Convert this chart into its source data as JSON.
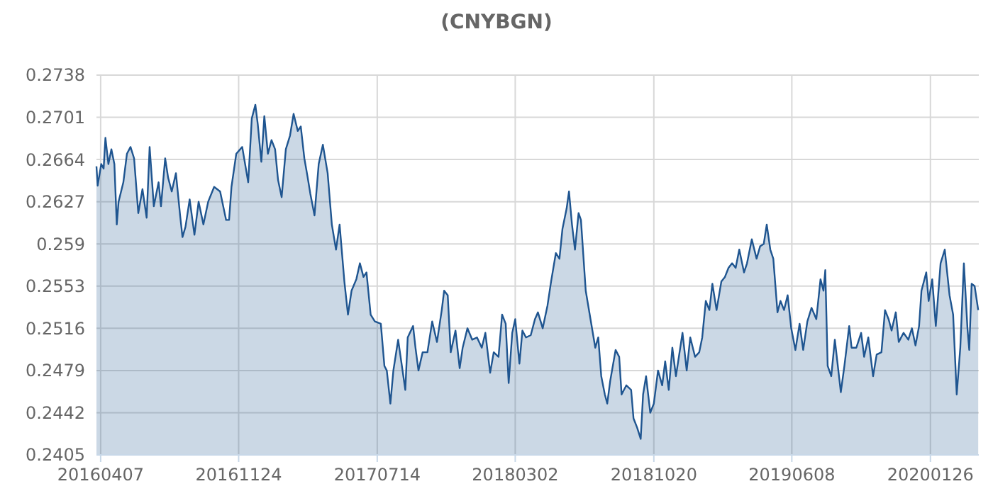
{
  "chart_data": {
    "type": "area",
    "title": "(CNYBGN)",
    "xlim": [
      "2016-03-31",
      "2020-04-16"
    ],
    "xticks": [
      {
        "value": "2016-04-07",
        "label": "20160407"
      },
      {
        "value": "2016-11-24",
        "label": "20161124"
      },
      {
        "value": "2017-07-14",
        "label": "20170714"
      },
      {
        "value": "2018-03-02",
        "label": "20180302"
      },
      {
        "value": "2018-10-20",
        "label": "20181020"
      },
      {
        "value": "2019-06-08",
        "label": "20190608"
      },
      {
        "value": "2020-01-26",
        "label": "20200126"
      }
    ],
    "ylim": [
      0.2405,
      0.2738
    ],
    "yticks": [
      0.2405,
      0.2442,
      0.2479,
      0.2516,
      0.2553,
      0.259,
      0.2627,
      0.2664,
      0.2701,
      0.2738
    ],
    "grid": true,
    "series": [
      {
        "color": "#1f5590",
        "x": [
          "2016-03-31",
          "2016-04-02",
          "2016-04-08",
          "2016-04-12",
          "2016-04-15",
          "2016-04-20",
          "2016-04-25",
          "2016-04-30",
          "2016-05-04",
          "2016-05-07",
          "2016-05-15",
          "2016-05-21",
          "2016-05-27",
          "2016-06-02",
          "2016-06-09",
          "2016-06-16",
          "2016-06-23",
          "2016-06-28",
          "2016-07-05",
          "2016-07-13",
          "2016-07-17",
          "2016-07-24",
          "2016-07-29",
          "2016-08-04",
          "2016-08-11",
          "2016-08-18",
          "2016-08-22",
          "2016-08-27",
          "2016-09-03",
          "2016-09-11",
          "2016-09-18",
          "2016-09-26",
          "2016-10-04",
          "2016-10-14",
          "2016-10-24",
          "2016-11-03",
          "2016-11-08",
          "2016-11-12",
          "2016-11-20",
          "2016-11-30",
          "2016-12-10",
          "2016-12-16",
          "2016-12-22",
          "2016-12-26",
          "2017-01-01",
          "2017-01-06",
          "2017-01-12",
          "2017-01-18",
          "2017-01-24",
          "2017-01-29",
          "2017-02-04",
          "2017-02-11",
          "2017-02-18",
          "2017-02-24",
          "2017-03-03",
          "2017-03-08",
          "2017-03-14",
          "2017-03-19",
          "2017-03-24",
          "2017-03-31",
          "2017-04-07",
          "2017-04-14",
          "2017-04-22",
          "2017-04-29",
          "2017-05-06",
          "2017-05-12",
          "2017-05-20",
          "2017-05-26",
          "2017-06-01",
          "2017-06-09",
          "2017-06-15",
          "2017-06-21",
          "2017-06-26",
          "2017-07-03",
          "2017-07-10",
          "2017-07-20",
          "2017-07-26",
          "2017-07-30",
          "2017-08-05",
          "2017-08-10",
          "2017-08-18",
          "2017-08-30",
          "2017-09-03",
          "2017-09-12",
          "2017-09-16",
          "2017-09-21",
          "2017-09-28",
          "2017-10-06",
          "2017-10-14",
          "2017-10-22",
          "2017-10-30",
          "2017-11-03",
          "2017-11-09",
          "2017-11-14",
          "2017-11-22",
          "2017-11-29",
          "2017-12-04",
          "2017-12-12",
          "2017-12-20",
          "2017-12-28",
          "2018-01-05",
          "2018-01-11",
          "2018-01-19",
          "2018-01-25",
          "2018-02-02",
          "2018-02-08",
          "2018-02-14",
          "2018-02-19",
          "2018-02-25",
          "2018-03-02",
          "2018-03-09",
          "2018-03-14",
          "2018-03-20",
          "2018-03-28",
          "2018-04-04",
          "2018-04-09",
          "2018-04-17",
          "2018-04-25",
          "2018-05-01",
          "2018-05-09",
          "2018-05-15",
          "2018-05-20",
          "2018-05-27",
          "2018-05-31",
          "2018-06-05",
          "2018-06-10",
          "2018-06-16",
          "2018-06-20",
          "2018-06-28",
          "2018-07-06",
          "2018-07-14",
          "2018-07-19",
          "2018-07-24",
          "2018-07-30",
          "2018-08-03",
          "2018-08-08",
          "2018-08-17",
          "2018-08-23",
          "2018-08-27",
          "2018-09-04",
          "2018-09-12",
          "2018-09-16",
          "2018-09-22",
          "2018-09-28",
          "2018-10-02",
          "2018-10-07",
          "2018-10-14",
          "2018-10-20",
          "2018-10-27",
          "2018-11-03",
          "2018-11-08",
          "2018-11-14",
          "2018-11-20",
          "2018-11-26",
          "2018-12-07",
          "2018-12-14",
          "2018-12-20",
          "2018-12-28",
          "2019-01-04",
          "2019-01-09",
          "2019-01-15",
          "2019-01-21",
          "2019-01-26",
          "2019-02-02",
          "2019-02-10",
          "2019-02-16",
          "2019-02-22",
          "2019-02-28",
          "2019-03-06",
          "2019-03-12",
          "2019-03-20",
          "2019-03-25",
          "2019-04-02",
          "2019-04-10",
          "2019-04-16",
          "2019-04-22",
          "2019-04-27",
          "2019-05-03",
          "2019-05-08",
          "2019-05-15",
          "2019-05-20",
          "2019-05-26",
          "2019-06-01",
          "2019-06-07",
          "2019-06-14",
          "2019-06-21",
          "2019-06-27",
          "2019-07-04",
          "2019-07-11",
          "2019-07-19",
          "2019-07-26",
          "2019-07-31",
          "2019-08-03",
          "2019-08-07",
          "2019-08-13",
          "2019-08-19",
          "2019-08-29",
          "2019-09-04",
          "2019-09-12",
          "2019-09-16",
          "2019-09-24",
          "2019-10-02",
          "2019-10-07",
          "2019-10-14",
          "2019-10-22",
          "2019-10-28",
          "2019-11-05",
          "2019-11-11",
          "2019-11-17",
          "2019-11-22",
          "2019-11-29",
          "2019-12-04",
          "2019-12-12",
          "2019-12-20",
          "2019-12-26",
          "2020-01-01",
          "2020-01-07",
          "2020-01-11",
          "2020-01-19",
          "2020-01-23",
          "2020-01-29",
          "2020-02-04",
          "2020-02-12",
          "2020-02-19",
          "2020-02-27",
          "2020-03-04",
          "2020-03-10",
          "2020-03-16",
          "2020-03-22",
          "2020-03-28",
          "2020-03-31",
          "2020-04-04",
          "2020-04-09",
          "2020-04-15"
        ],
        "values": [
          0.2658,
          0.2641,
          0.266,
          0.2656,
          0.2683,
          0.266,
          0.2673,
          0.266,
          0.2607,
          0.2627,
          0.2644,
          0.2669,
          0.2675,
          0.2665,
          0.2617,
          0.2638,
          0.2613,
          0.2675,
          0.2623,
          0.2644,
          0.2623,
          0.2665,
          0.2648,
          0.2636,
          0.2652,
          0.2615,
          0.2596,
          0.2605,
          0.2629,
          0.2598,
          0.2627,
          0.2607,
          0.2627,
          0.264,
          0.2636,
          0.2611,
          0.2611,
          0.264,
          0.2669,
          0.2675,
          0.2644,
          0.27,
          0.2712,
          0.2695,
          0.2662,
          0.2702,
          0.2669,
          0.2681,
          0.2673,
          0.2646,
          0.2631,
          0.2673,
          0.2685,
          0.2704,
          0.2689,
          0.2693,
          0.2665,
          0.265,
          0.2634,
          0.2615,
          0.266,
          0.2677,
          0.2652,
          0.2607,
          0.2585,
          0.2607,
          0.2557,
          0.2528,
          0.2549,
          0.2559,
          0.2573,
          0.2561,
          0.2565,
          0.2528,
          0.2522,
          0.252,
          0.2483,
          0.2479,
          0.245,
          0.2479,
          0.2506,
          0.2462,
          0.2508,
          0.2518,
          0.2499,
          0.2479,
          0.2495,
          0.2495,
          0.2522,
          0.2504,
          0.2532,
          0.2549,
          0.2545,
          0.2495,
          0.2514,
          0.2481,
          0.2499,
          0.2516,
          0.2506,
          0.2508,
          0.2499,
          0.2512,
          0.2477,
          0.2495,
          0.2491,
          0.2528,
          0.252,
          0.2468,
          0.2512,
          0.2524,
          0.2485,
          0.2514,
          0.2508,
          0.251,
          0.2524,
          0.253,
          0.2516,
          0.2536,
          0.2557,
          0.2582,
          0.2577,
          0.2603,
          0.2621,
          0.2636,
          0.2607,
          0.2585,
          0.2617,
          0.2611,
          0.2549,
          0.2524,
          0.2499,
          0.2508,
          0.2474,
          0.2458,
          0.245,
          0.247,
          0.2497,
          0.2491,
          0.2458,
          0.2466,
          0.2462,
          0.2437,
          0.2429,
          0.2419,
          0.2458,
          0.2474,
          0.2442,
          0.245,
          0.2479,
          0.2466,
          0.2487,
          0.2462,
          0.2499,
          0.2474,
          0.2512,
          0.2479,
          0.2508,
          0.2491,
          0.2495,
          0.2508,
          0.254,
          0.2532,
          0.2555,
          0.2532,
          0.2557,
          0.2561,
          0.2569,
          0.2573,
          0.2569,
          0.2585,
          0.2565,
          0.2573,
          0.2594,
          0.2577,
          0.2588,
          0.259,
          0.2607,
          0.2585,
          0.2577,
          0.253,
          0.254,
          0.2532,
          0.2545,
          0.2516,
          0.2497,
          0.252,
          0.2497,
          0.2522,
          0.2534,
          0.2524,
          0.2559,
          0.2549,
          0.2567,
          0.2483,
          0.2474,
          0.2506,
          0.246,
          0.2483,
          0.2518,
          0.2499,
          0.2499,
          0.2512,
          0.2491,
          0.2508,
          0.2474,
          0.2493,
          0.2495,
          0.2532,
          0.2524,
          0.2514,
          0.253,
          0.2504,
          0.2512,
          0.2506,
          0.2516,
          0.2501,
          0.2518,
          0.2549,
          0.2565,
          0.254,
          0.2559,
          0.2518,
          0.2573,
          0.2585,
          0.2545,
          0.2528,
          0.2458,
          0.2499,
          0.2573,
          0.2516,
          0.2497,
          0.2555,
          0.2553,
          0.2532
        ]
      }
    ]
  }
}
